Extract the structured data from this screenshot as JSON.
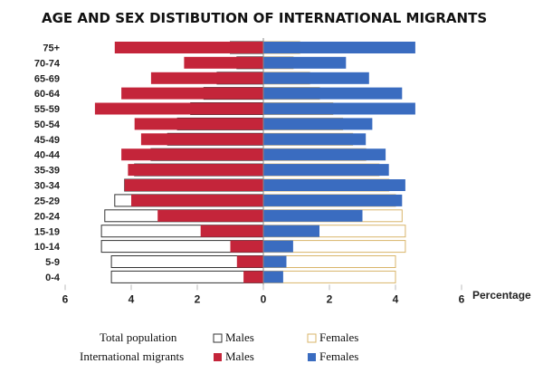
{
  "chart_data": {
    "type": "bar",
    "orientation": "horizontal",
    "subtype": "population-pyramid",
    "title": "AGE AND SEX DISTIBUTION OF INTERNATIONAL MIGRANTS",
    "xlabel": "Percentage",
    "xlim": [
      -6,
      6
    ],
    "x_ticks": [
      -6,
      -4,
      -2,
      0,
      2,
      4,
      6
    ],
    "x_tick_labels": [
      "6",
      "4",
      "2",
      "0",
      "2",
      "4",
      "6"
    ],
    "categories": [
      "75+",
      "70-74",
      "65-69",
      "60-64",
      "55-59",
      "50-54",
      "45-49",
      "40-44",
      "35-39",
      "30-34",
      "25-29",
      "20-24",
      "15-19",
      "10-14",
      "5-9",
      "0-4"
    ],
    "series": [
      {
        "name": "Males",
        "group": "Total population",
        "side": "left",
        "style": "outline",
        "color": "#333333",
        "values": [
          1.0,
          0.8,
          1.4,
          1.8,
          2.2,
          2.6,
          2.9,
          3.4,
          3.9,
          4.2,
          4.5,
          4.8,
          4.9,
          4.9,
          4.6,
          4.6
        ]
      },
      {
        "name": "Females",
        "group": "Total population",
        "side": "right",
        "style": "outline",
        "color": "#d9b56a",
        "values": [
          1.1,
          0.9,
          1.4,
          1.7,
          2.1,
          2.4,
          2.7,
          3.1,
          3.5,
          3.8,
          4.0,
          4.2,
          4.3,
          4.3,
          4.0,
          4.0
        ]
      },
      {
        "name": "Males",
        "group": "International migrants",
        "side": "left",
        "style": "filled",
        "color": "#c4253a",
        "values": [
          4.5,
          2.4,
          3.4,
          4.3,
          5.1,
          3.9,
          3.7,
          4.3,
          4.1,
          4.2,
          4.0,
          3.2,
          1.9,
          1.0,
          0.8,
          0.6
        ]
      },
      {
        "name": "Females",
        "group": "International migrants",
        "side": "right",
        "style": "filled",
        "color": "#3a6cc0",
        "values": [
          4.6,
          2.5,
          3.2,
          4.2,
          4.6,
          3.3,
          3.1,
          3.7,
          3.8,
          4.3,
          4.2,
          3.0,
          1.7,
          0.9,
          0.7,
          0.6
        ]
      }
    ],
    "legend": {
      "placement": "bottom",
      "rows": [
        {
          "label": "Total population",
          "items": [
            {
              "label": "Males"
            },
            {
              "label": "Females"
            }
          ]
        },
        {
          "label": "International migrants",
          "items": [
            {
              "label": "Males"
            },
            {
              "label": "Females"
            }
          ]
        }
      ]
    },
    "grid": false
  }
}
